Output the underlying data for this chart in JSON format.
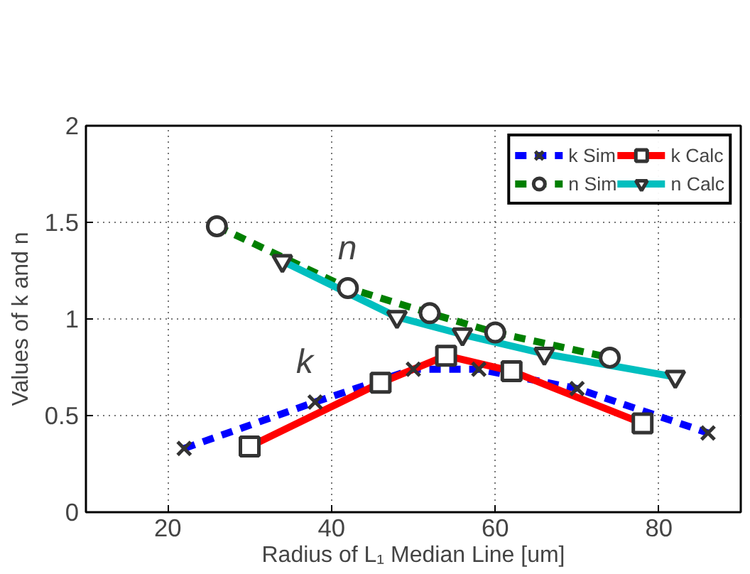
{
  "chart_data": {
    "type": "line",
    "xlabel": "Radius of L₁ Median Line [um]",
    "ylabel": "Values of k and n",
    "xlim": [
      10,
      90
    ],
    "xticks": [
      20,
      40,
      60,
      80
    ],
    "ylim": [
      0,
      2
    ],
    "yticks": [
      0,
      0.5,
      1,
      1.5,
      2
    ],
    "grid": true,
    "legend": "top right",
    "annotations": [
      "n",
      "k"
    ],
    "series": [
      {
        "name": "k Sim",
        "color": "#0000ff",
        "line_style": "dashed",
        "marker": "cross",
        "x": [
          22,
          38,
          50,
          58,
          70,
          86
        ],
        "values": [
          0.33,
          0.57,
          0.74,
          0.74,
          0.64,
          0.41
        ]
      },
      {
        "name": "k Calc",
        "color": "#ff0000",
        "line_style": "solid",
        "marker": "square",
        "x": [
          30,
          46,
          54,
          62,
          78
        ],
        "values": [
          0.34,
          0.67,
          0.81,
          0.73,
          0.46
        ]
      },
      {
        "name": "n Sim",
        "color": "#007f00",
        "line_style": "dashed",
        "marker": "circle",
        "x": [
          26,
          42,
          52,
          60,
          74
        ],
        "values": [
          1.48,
          1.16,
          1.03,
          0.93,
          0.8
        ]
      },
      {
        "name": "n Calc",
        "color": "#00bfbf",
        "line_style": "solid",
        "marker": "triangle",
        "x": [
          34,
          48,
          56,
          66,
          82
        ],
        "values": [
          1.3,
          1.01,
          0.92,
          0.82,
          0.7
        ]
      }
    ]
  }
}
